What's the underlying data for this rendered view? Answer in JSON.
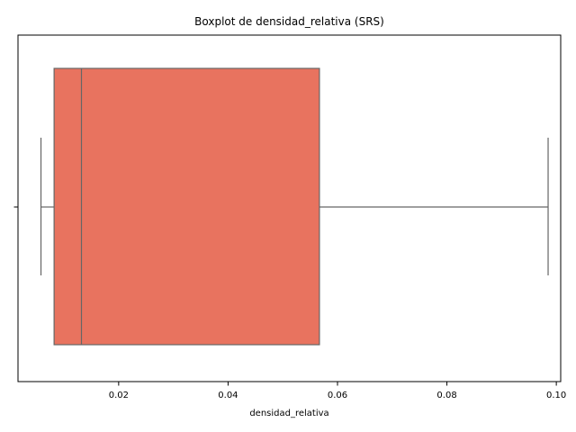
{
  "chart_data": {
    "type": "boxplot",
    "orientation": "horizontal",
    "title": "Boxplot de densidad_relativa (SRS)",
    "xlabel": "densidad_relativa",
    "ylabel": "",
    "xlim": [
      0.0016,
      0.1008
    ],
    "xticks": [
      0.02,
      0.04,
      0.06,
      0.08,
      0.1
    ],
    "xtick_labels": [
      "0.02",
      "0.04",
      "0.06",
      "0.08",
      "0.10"
    ],
    "box": {
      "whisker_low": 0.0058,
      "q1": 0.0082,
      "median": 0.0132,
      "q3": 0.0567,
      "whisker_high": 0.0985
    },
    "box_color": "#e8735f",
    "line_color": "#666666",
    "grid": false
  }
}
